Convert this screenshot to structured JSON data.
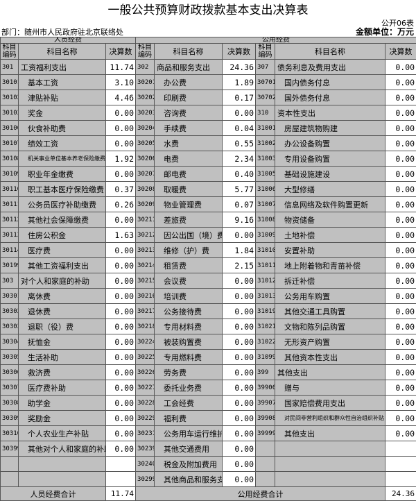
{
  "title": "一般公共预算财政拨款基本支出决算表",
  "form_no": "公开06表",
  "department": "部门：随州市人民政府驻北京联络处",
  "unit": "金额单位：万元",
  "groups": {
    "personnel": "人员经费",
    "public": "公用经费"
  },
  "headers": {
    "code": "科目编码",
    "name": "科目名称",
    "amount": "决算数"
  },
  "personnel_rows": [
    {
      "code": "301",
      "name": "工资福利支出",
      "amount": "11.74"
    },
    {
      "code": "30101",
      "name": "基本工资",
      "amount": "3.10"
    },
    {
      "code": "30102",
      "name": "津贴补贴",
      "amount": "4.46"
    },
    {
      "code": "30103",
      "name": "奖金",
      "amount": "0.00"
    },
    {
      "code": "30106",
      "name": "伙食补助费",
      "amount": "0.00"
    },
    {
      "code": "30107",
      "name": "绩效工资",
      "amount": "0.00"
    },
    {
      "code": "30108",
      "name": "机关事业单位基本养老保险缴费",
      "amount": "1.92"
    },
    {
      "code": "30109",
      "name": "职业年金缴费",
      "amount": "0.00"
    },
    {
      "code": "30110",
      "name": "职工基本医疗保险缴费",
      "amount": "0.37"
    },
    {
      "code": "30111",
      "name": "公务员医疗补助缴费",
      "amount": "0.26"
    },
    {
      "code": "30112",
      "name": "其他社会保障缴费",
      "amount": "0.00"
    },
    {
      "code": "30113",
      "name": "住房公积金",
      "amount": "1.63"
    },
    {
      "code": "30114",
      "name": "医疗费",
      "amount": "0.00"
    },
    {
      "code": "30199",
      "name": "其他工资福利支出",
      "amount": "0.00"
    },
    {
      "code": "303",
      "name": "对个人和家庭的补助",
      "amount": "0.00"
    },
    {
      "code": "30301",
      "name": "离休费",
      "amount": "0.00"
    },
    {
      "code": "30302",
      "name": "退休费",
      "amount": "0.00"
    },
    {
      "code": "30303",
      "name": "退职（役）费",
      "amount": "0.00"
    },
    {
      "code": "30304",
      "name": "抚恤金",
      "amount": "0.00"
    },
    {
      "code": "30305",
      "name": "生活补助",
      "amount": "0.00"
    },
    {
      "code": "30306",
      "name": "救济费",
      "amount": "0.00"
    },
    {
      "code": "30307",
      "name": "医疗费补助",
      "amount": "0.00"
    },
    {
      "code": "30308",
      "name": "助学金",
      "amount": "0.00"
    },
    {
      "code": "30309",
      "name": "奖励金",
      "amount": "0.00"
    },
    {
      "code": "30310",
      "name": "个人农业生产补贴",
      "amount": "0.00"
    },
    {
      "code": "30399",
      "name": "其他对个人和家庭的补助",
      "amount": "0.00"
    },
    {
      "code": "",
      "name": "",
      "amount": ""
    },
    {
      "code": "",
      "name": "",
      "amount": ""
    }
  ],
  "public_rows_a": [
    {
      "code": "302",
      "name": "商品和服务支出",
      "amount": "24.36"
    },
    {
      "code": "30201",
      "name": "办公费",
      "amount": "1.89"
    },
    {
      "code": "30202",
      "name": "印刷费",
      "amount": "0.17"
    },
    {
      "code": "30203",
      "name": "咨询费",
      "amount": "0.00"
    },
    {
      "code": "30204",
      "name": "手续费",
      "amount": "0.04"
    },
    {
      "code": "30205",
      "name": "水费",
      "amount": "0.55"
    },
    {
      "code": "30206",
      "name": "电费",
      "amount": "2.34"
    },
    {
      "code": "30207",
      "name": "邮电费",
      "amount": "0.40"
    },
    {
      "code": "30208",
      "name": "取暖费",
      "amount": "5.77"
    },
    {
      "code": "30209",
      "name": "物业管理费",
      "amount": "0.07"
    },
    {
      "code": "30211",
      "name": "差旅费",
      "amount": "9.16"
    },
    {
      "code": "30212",
      "name": "因公出国（境）费用",
      "amount": "0.00"
    },
    {
      "code": "30213",
      "name": "维修（护）费",
      "amount": "1.84"
    },
    {
      "code": "30214",
      "name": "租赁费",
      "amount": "2.15"
    },
    {
      "code": "30215",
      "name": "会议费",
      "amount": "0.00"
    },
    {
      "code": "30216",
      "name": "培训费",
      "amount": "0.00"
    },
    {
      "code": "30217",
      "name": "公务接待费",
      "amount": "0.00"
    },
    {
      "code": "30218",
      "name": "专用材料费",
      "amount": "0.00"
    },
    {
      "code": "30224",
      "name": "被装购置费",
      "amount": "0.00"
    },
    {
      "code": "30225",
      "name": "专用燃料费",
      "amount": "0.00"
    },
    {
      "code": "30226",
      "name": "劳务费",
      "amount": "0.00"
    },
    {
      "code": "30227",
      "name": "委托业务费",
      "amount": "0.00"
    },
    {
      "code": "30228",
      "name": "工会经费",
      "amount": "0.00"
    },
    {
      "code": "30229",
      "name": "福利费",
      "amount": "0.00"
    },
    {
      "code": "30231",
      "name": "公务用车运行维护费",
      "amount": "0.00"
    },
    {
      "code": "30239",
      "name": "其他交通费用",
      "amount": "0.00"
    },
    {
      "code": "30240",
      "name": "税金及附加费用",
      "amount": "0.00"
    },
    {
      "code": "30299",
      "name": "其他商品和服务支出",
      "amount": "0.00"
    }
  ],
  "public_rows_b": [
    {
      "code": "307",
      "name": "债务利息及费用支出",
      "amount": "0.00"
    },
    {
      "code": "30701",
      "name": "国内债务付息",
      "amount": "0.00"
    },
    {
      "code": "30702",
      "name": "国外债务付息",
      "amount": "0.00"
    },
    {
      "code": "310",
      "name": "资本性支出",
      "amount": "0.00"
    },
    {
      "code": "31001",
      "name": "房屋建筑物购建",
      "amount": "0.00"
    },
    {
      "code": "31002",
      "name": "办公设备购置",
      "amount": "0.00"
    },
    {
      "code": "31003",
      "name": "专用设备购置",
      "amount": "0.00"
    },
    {
      "code": "31005",
      "name": "基础设施建设",
      "amount": "0.00"
    },
    {
      "code": "31006",
      "name": "大型修缮",
      "amount": "0.00"
    },
    {
      "code": "31007",
      "name": "信息网络及软件购置更新",
      "amount": "0.00"
    },
    {
      "code": "31008",
      "name": "物资储备",
      "amount": "0.00"
    },
    {
      "code": "31009",
      "name": "土地补偿",
      "amount": "0.00"
    },
    {
      "code": "31010",
      "name": "安置补助",
      "amount": "0.00"
    },
    {
      "code": "31011",
      "name": "地上附着物和青苗补偿",
      "amount": "0.00"
    },
    {
      "code": "31012",
      "name": "拆迁补偿",
      "amount": "0.00"
    },
    {
      "code": "31013",
      "name": "公务用车购置",
      "amount": "0.00"
    },
    {
      "code": "31019",
      "name": "其他交通工具购置",
      "amount": "0.00"
    },
    {
      "code": "31021",
      "name": "文物和陈列品购置",
      "amount": "0.00"
    },
    {
      "code": "31022",
      "name": "无形资产购置",
      "amount": "0.00"
    },
    {
      "code": "31099",
      "name": "其他资本性支出",
      "amount": "0.00"
    },
    {
      "code": "399",
      "name": "其他支出",
      "amount": "0.00"
    },
    {
      "code": "39906",
      "name": "赠与",
      "amount": "0.00"
    },
    {
      "code": "39907",
      "name": "国家赔偿费用支出",
      "amount": "0.00"
    },
    {
      "code": "39908",
      "name": "对民间非营利组织和群众性自治组织补贴",
      "amount": "0.00"
    },
    {
      "code": "39999",
      "name": "其他支出",
      "amount": "0.00"
    },
    {
      "code": "",
      "name": "",
      "amount": ""
    },
    {
      "code": "",
      "name": "",
      "amount": ""
    },
    {
      "code": "",
      "name": "",
      "amount": ""
    }
  ],
  "totals": {
    "personnel_label": "人员经费合计",
    "personnel_amount": "11.74",
    "public_label": "公用经费合计",
    "public_amount": "24.36"
  },
  "colors": {
    "cell_grey": "#c0c0c0",
    "value_white": "#ffffff"
  }
}
